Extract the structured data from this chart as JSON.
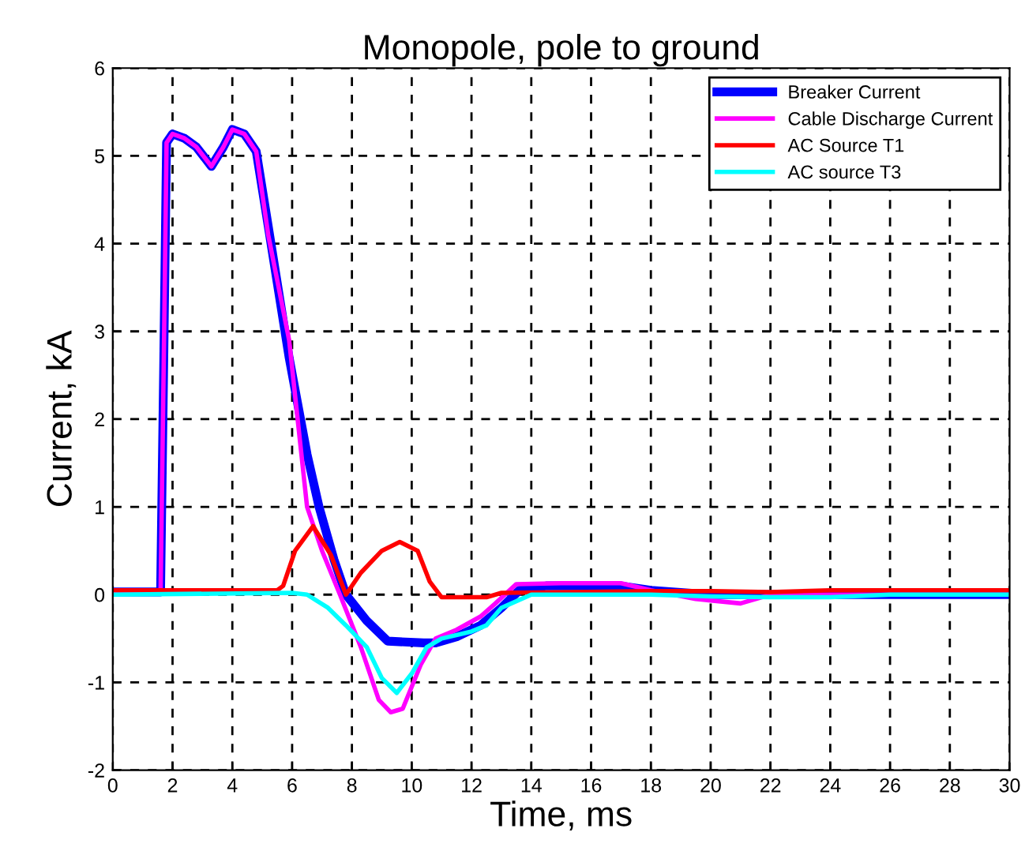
{
  "chart_data": {
    "type": "line",
    "title": "Monopole, pole to ground",
    "xlabel": "Time, ms",
    "ylabel": "Current, kA",
    "xlim": [
      0,
      30
    ],
    "xticks": [
      0,
      2,
      4,
      6,
      8,
      10,
      12,
      14,
      16,
      18,
      20,
      22,
      24,
      26,
      28,
      30
    ],
    "ylim": [
      -2,
      6
    ],
    "yticks": [
      -2,
      -1,
      0,
      1,
      2,
      3,
      4,
      5,
      6
    ],
    "grid": true,
    "legend": "top right",
    "line_style": "solid",
    "marker": "none",
    "series": [
      {
        "name": "Breaker Current",
        "color": "#0000ff",
        "x": [
          0,
          1.6,
          1.7,
          1.8,
          2.0,
          2.4,
          2.8,
          3.3,
          3.7,
          4.0,
          4.4,
          4.8,
          5.2,
          5.9,
          6.5,
          6.9,
          7.4,
          7.8,
          8.5,
          9.2,
          10.4,
          10.8,
          11.5,
          12.3,
          13.0,
          13.6,
          14.5,
          17,
          18,
          20,
          22,
          24,
          26,
          28,
          30
        ],
        "values": [
          0.03,
          0.03,
          2.5,
          5.15,
          5.25,
          5.2,
          5.1,
          4.88,
          5.1,
          5.3,
          5.25,
          5.05,
          4.2,
          2.7,
          1.6,
          1.0,
          0.4,
          0.0,
          -0.3,
          -0.53,
          -0.55,
          -0.55,
          -0.48,
          -0.35,
          -0.15,
          0.05,
          0.1,
          0.1,
          0.05,
          0.0,
          0.0,
          0.0,
          0.0,
          0.0,
          0.0
        ]
      },
      {
        "name": "Cable Discharge Current",
        "color": "#ff00ff",
        "x": [
          0,
          1.6,
          1.7,
          1.8,
          2.0,
          2.4,
          2.8,
          3.3,
          3.7,
          4.0,
          4.4,
          4.8,
          5.2,
          5.9,
          6.5,
          7.0,
          7.6,
          8.3,
          8.9,
          9.3,
          9.7,
          10.3,
          10.8,
          11.5,
          12.3,
          12.8,
          13.5,
          15,
          17,
          18,
          19.5,
          21,
          22,
          24,
          26,
          28,
          30
        ],
        "values": [
          0.03,
          0.03,
          2.5,
          5.15,
          5.25,
          5.2,
          5.1,
          4.88,
          5.1,
          5.3,
          5.25,
          5.05,
          4.1,
          2.9,
          1.0,
          0.5,
          0.0,
          -0.6,
          -1.2,
          -1.34,
          -1.3,
          -0.8,
          -0.5,
          -0.4,
          -0.25,
          -0.1,
          0.12,
          0.13,
          0.13,
          0.05,
          -0.05,
          -0.1,
          0.0,
          0.0,
          0.0,
          0.0,
          0.0
        ]
      },
      {
        "name": "AC Source T1",
        "color": "#ff0000",
        "x": [
          0,
          5.5,
          5.7,
          6.1,
          6.7,
          7.3,
          7.8,
          8.3,
          9.0,
          9.6,
          10.2,
          10.6,
          11.0,
          12.5,
          13.0,
          18,
          20,
          22,
          24,
          26,
          28,
          30
        ],
        "values": [
          0.05,
          0.05,
          0.1,
          0.5,
          0.78,
          0.45,
          0.0,
          0.25,
          0.5,
          0.6,
          0.5,
          0.15,
          -0.03,
          -0.03,
          0.02,
          0.04,
          0.04,
          0.03,
          0.05,
          0.05,
          0.05,
          0.05
        ]
      },
      {
        "name": "AC source T3",
        "color": "#00ffff",
        "x": [
          0,
          6.0,
          6.5,
          7.2,
          7.8,
          8.5,
          9.0,
          9.5,
          10.0,
          10.5,
          11.0,
          12.0,
          12.5,
          13.0,
          14.0,
          16,
          18,
          20,
          22,
          24,
          26,
          28,
          30
        ],
        "values": [
          0.0,
          0.02,
          0.0,
          -0.15,
          -0.35,
          -0.6,
          -0.95,
          -1.12,
          -0.9,
          -0.6,
          -0.5,
          -0.42,
          -0.35,
          -0.15,
          0.0,
          0.0,
          0.0,
          -0.02,
          -0.03,
          -0.03,
          0.0,
          0.0,
          0.0
        ]
      }
    ]
  }
}
